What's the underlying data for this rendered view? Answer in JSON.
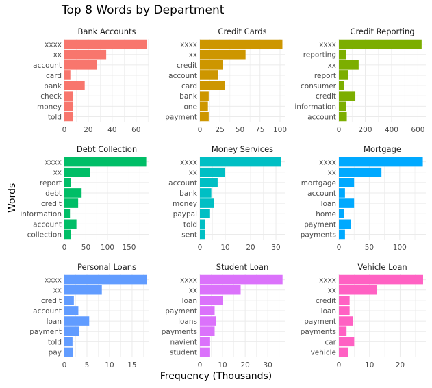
{
  "title": "Top 8 Words by Department",
  "chart_data": {
    "type": "bar",
    "orientation": "horizontal",
    "title": "Top 8 Words by Department",
    "xlabel": "Frequency (Thousands)",
    "ylabel": "Words",
    "grid": true,
    "facets": [
      {
        "name": "Bank Accounts",
        "color": "#F8766D",
        "categories": [
          "xxxx",
          "xx",
          "account",
          "card",
          "bank",
          "check",
          "money",
          "told"
        ],
        "values": [
          69,
          35,
          27,
          5,
          17,
          7,
          7,
          7
        ],
        "xlim": [
          0,
          71
        ],
        "ticks": [
          0,
          20,
          40,
          60
        ]
      },
      {
        "name": "Credit Cards",
        "color": "#CD9600",
        "categories": [
          "xxxx",
          "xx",
          "credit",
          "account",
          "card",
          "bank",
          "one",
          "payment"
        ],
        "values": [
          103,
          57,
          29,
          23,
          31,
          11,
          10,
          11
        ],
        "xlim": [
          0,
          106
        ],
        "ticks": [
          0,
          25,
          50,
          75,
          100
        ]
      },
      {
        "name": "Credit Reporting",
        "color": "#7CAE00",
        "categories": [
          "xxxx",
          "reporting",
          "xx",
          "report",
          "consumer",
          "credit",
          "information",
          "account"
        ],
        "values": [
          628,
          55,
          150,
          70,
          40,
          125,
          55,
          60
        ],
        "xlim": [
          0,
          660
        ],
        "ticks": [
          0,
          200,
          400,
          600
        ]
      },
      {
        "name": "Debt Collection",
        "color": "#00BE67",
        "categories": [
          "xxxx",
          "xx",
          "report",
          "debt",
          "credit",
          "information",
          "account",
          "collection"
        ],
        "values": [
          190,
          60,
          15,
          40,
          32,
          13,
          28,
          15
        ],
        "xlim": [
          0,
          197
        ],
        "ticks": [
          0,
          50,
          100,
          150
        ]
      },
      {
        "name": "Money Services",
        "color": "#00BFC4",
        "categories": [
          "xxxx",
          "xx",
          "account",
          "bank",
          "money",
          "paypal",
          "told",
          "sent"
        ],
        "values": [
          32,
          10,
          7,
          4.5,
          5.5,
          4,
          2,
          2
        ],
        "xlim": [
          0,
          33.5
        ],
        "ticks": [
          0,
          10,
          20,
          30
        ]
      },
      {
        "name": "Mortgage",
        "color": "#00A9FF",
        "categories": [
          "xxxx",
          "xx",
          "mortgage",
          "account",
          "loan",
          "home",
          "payment",
          "payments"
        ],
        "values": [
          138,
          70,
          25,
          10,
          25,
          8,
          20,
          10
        ],
        "xlim": [
          0,
          143
        ],
        "ticks": [
          0,
          50,
          100
        ]
      },
      {
        "name": "Personal Loans",
        "color": "#619CFF",
        "categories": [
          "xxxx",
          "xx",
          "credit",
          "account",
          "loan",
          "payment",
          "told",
          "pay"
        ],
        "values": [
          18.3,
          8.3,
          2.1,
          3.1,
          5.5,
          3.3,
          1.8,
          1.9
        ],
        "xlim": [
          0,
          18.8
        ],
        "ticks": [
          0,
          5,
          10,
          15
        ]
      },
      {
        "name": "Student Loan",
        "color": "#DB72FB",
        "categories": [
          "xxxx",
          "xx",
          "loan",
          "payment",
          "loans",
          "payments",
          "navient",
          "student"
        ],
        "values": [
          36.5,
          18,
          10,
          6.5,
          7,
          6.5,
          4.5,
          4.5
        ],
        "xlim": [
          0,
          37.5
        ],
        "ticks": [
          0,
          10,
          20,
          30
        ]
      },
      {
        "name": "Vehicle Loan",
        "color": "#FF61C3",
        "categories": [
          "xxxx",
          "xx",
          "credit",
          "loan",
          "payment",
          "payments",
          "car",
          "vehicle"
        ],
        "values": [
          27.5,
          12.5,
          3.5,
          3.5,
          4.5,
          2.5,
          5,
          3
        ],
        "xlim": [
          0,
          28.4
        ],
        "ticks": [
          0,
          10,
          20
        ]
      }
    ]
  }
}
